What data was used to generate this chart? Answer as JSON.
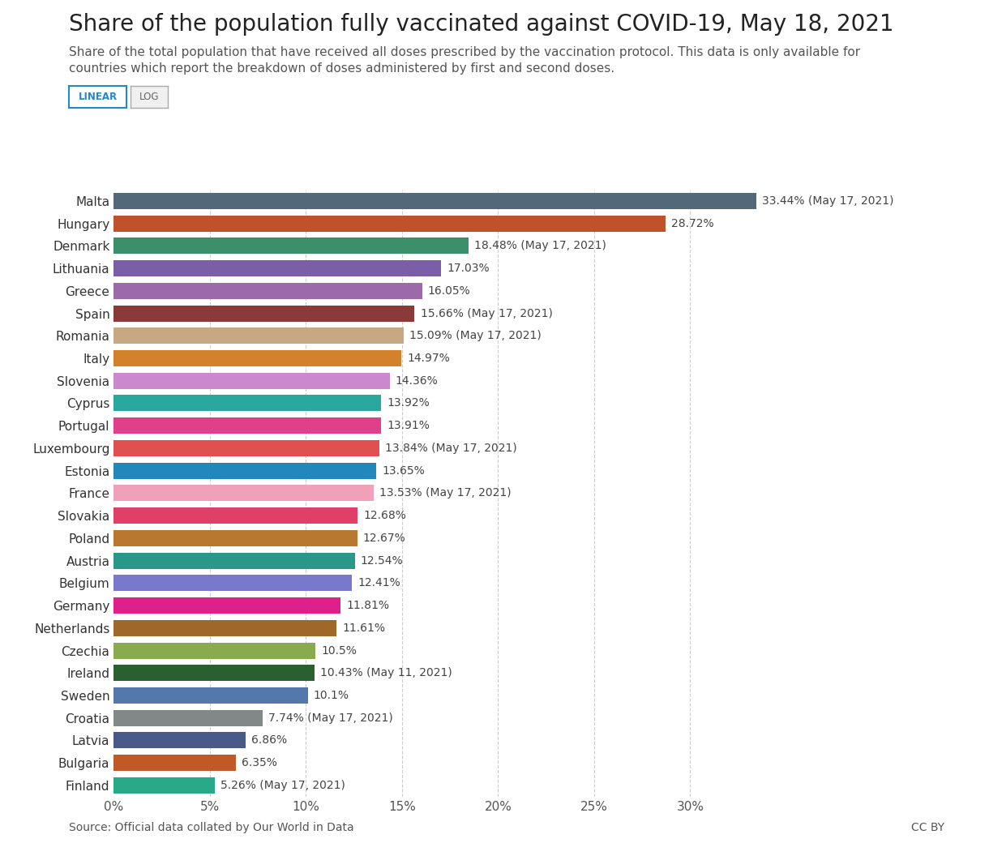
{
  "title": "Share of the population fully vaccinated against COVID-19, May 18, 2021",
  "subtitle": "Share of the total population that have received all doses prescribed by the vaccination protocol. This data is only available for\ncountries which report the breakdown of doses administered by first and second doses.",
  "source": "Source: Official data collated by Our World in Data",
  "countries": [
    "Malta",
    "Hungary",
    "Denmark",
    "Lithuania",
    "Greece",
    "Spain",
    "Romania",
    "Italy",
    "Slovenia",
    "Cyprus",
    "Portugal",
    "Luxembourg",
    "Estonia",
    "France",
    "Slovakia",
    "Poland",
    "Austria",
    "Belgium",
    "Germany",
    "Netherlands",
    "Czechia",
    "Ireland",
    "Sweden",
    "Croatia",
    "Latvia",
    "Bulgaria",
    "Finland"
  ],
  "values": [
    33.44,
    28.72,
    18.48,
    17.03,
    16.05,
    15.66,
    15.09,
    14.97,
    14.36,
    13.92,
    13.91,
    13.84,
    13.65,
    13.53,
    12.68,
    12.67,
    12.54,
    12.41,
    11.81,
    11.61,
    10.5,
    10.43,
    10.1,
    7.74,
    6.86,
    6.35,
    5.26
  ],
  "labels": [
    "33.44% (May 17, 2021)",
    "28.72%",
    "18.48% (May 17, 2021)",
    "17.03%",
    "16.05%",
    "15.66% (May 17, 2021)",
    "15.09% (May 17, 2021)",
    "14.97%",
    "14.36%",
    "13.92%",
    "13.91%",
    "13.84% (May 17, 2021)",
    "13.65%",
    "13.53% (May 17, 2021)",
    "12.68%",
    "12.67%",
    "12.54%",
    "12.41%",
    "11.81%",
    "11.61%",
    "10.5%",
    "10.43% (May 11, 2021)",
    "10.1%",
    "7.74% (May 17, 2021)",
    "6.86%",
    "6.35%",
    "5.26% (May 17, 2021)"
  ],
  "colors": [
    "#536878",
    "#c0522b",
    "#3a9068",
    "#7b5ea7",
    "#9c6aa8",
    "#8b3a3a",
    "#c8a882",
    "#d4812c",
    "#cc88cc",
    "#2aa8a0",
    "#e0408a",
    "#e05050",
    "#2288bb",
    "#f0a0b8",
    "#e04068",
    "#b87830",
    "#2a9888",
    "#7878cc",
    "#e0208a",
    "#a06828",
    "#8aaa50",
    "#2a6030",
    "#5578aa",
    "#808888",
    "#4a5a88",
    "#c05828",
    "#28aa88"
  ],
  "xlim": [
    0,
    35
  ],
  "xticks": [
    0,
    5,
    10,
    15,
    20,
    25,
    30
  ],
  "xtick_labels": [
    "0%",
    "5%",
    "10%",
    "15%",
    "20%",
    "25%",
    "30%"
  ],
  "background_color": "#ffffff",
  "bar_height": 0.72,
  "grid_color": "#cccccc",
  "title_fontsize": 20,
  "subtitle_fontsize": 11,
  "label_fontsize": 10,
  "tick_fontsize": 11,
  "ytick_fontsize": 11
}
